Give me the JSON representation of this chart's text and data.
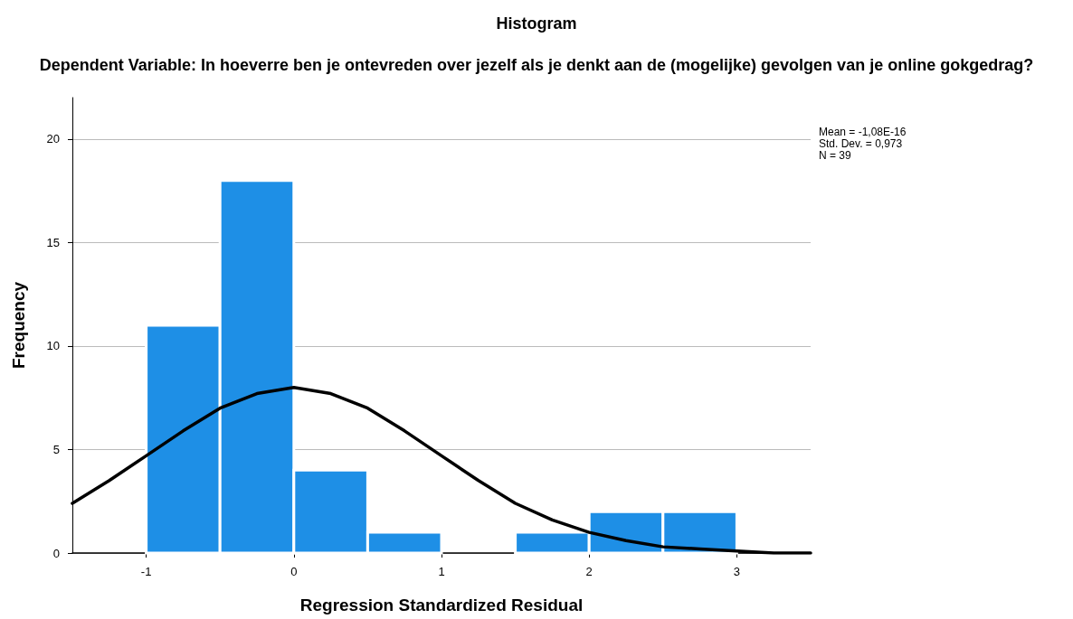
{
  "chart_data": {
    "type": "histogram",
    "title": "Histogram",
    "subtitle": "Dependent Variable: In hoeverre ben je ontevreden over jezelf als je denkt aan de (mogelijke) gevolgen van je online gokgedrag?",
    "xlabel": "Regression Standardized Residual",
    "ylabel": "Frequency",
    "bins": [
      -1,
      -0.5,
      0,
      0.5,
      1,
      1.5,
      2,
      2.5,
      3
    ],
    "values": [
      11,
      18,
      4,
      1,
      0,
      1,
      2,
      2
    ],
    "color": "#1e8fe6",
    "series": [
      {
        "type": "line",
        "color": "#000000",
        "x": [
          -1.5,
          -1.25,
          -1,
          -0.75,
          -0.5,
          -0.25,
          0,
          0.25,
          0.5,
          0.75,
          1,
          1.25,
          1.5,
          1.75,
          2,
          2.25,
          2.5,
          2.75,
          3,
          3.25,
          3.5
        ],
        "values": [
          2.4,
          3.5,
          4.7,
          5.9,
          7,
          7.7,
          8,
          7.7,
          7,
          5.9,
          4.7,
          3.5,
          2.4,
          1.6,
          1,
          0.6,
          0.3,
          0.2,
          0.1,
          0,
          0
        ]
      }
    ],
    "xlim": [
      -1.5,
      3.5
    ],
    "xticks": [
      -1,
      0,
      1,
      2,
      3
    ],
    "ylim": [
      0,
      22
    ],
    "yticks": [
      0,
      5,
      10,
      15,
      20
    ],
    "grid": "y",
    "marker": "none",
    "annotations": [
      "Mean = -1,08E-16",
      "Std. Dev. = 0,973",
      "N = 39"
    ]
  }
}
